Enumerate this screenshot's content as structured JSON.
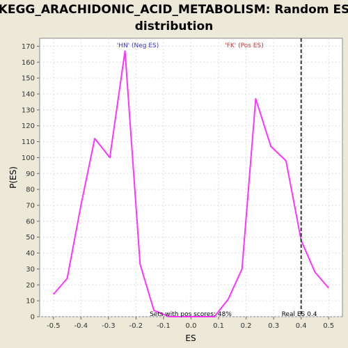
{
  "chart_data": {
    "type": "line",
    "title_line1": "KEGG_ARACHIDONIC_ACID_METABOLISM: Random ES",
    "title_line2": "distribution",
    "xlabel": "ES",
    "ylabel": "P(ES)",
    "xlim": [
      -0.55,
      0.55
    ],
    "ylim": [
      0,
      175
    ],
    "xticks": [
      -0.5,
      -0.4,
      -0.3,
      -0.2,
      -0.1,
      0.0,
      0.1,
      0.2,
      0.3,
      0.4,
      0.5
    ],
    "xtick_labels": [
      "-0.5",
      "-0.4",
      "-0.3",
      "-0.2",
      "-0.1",
      "0.0",
      "0.1",
      "0.2",
      "0.3",
      "0.4",
      "0.5"
    ],
    "yticks": [
      0,
      10,
      20,
      30,
      40,
      50,
      60,
      70,
      80,
      90,
      100,
      110,
      120,
      130,
      140,
      150,
      160,
      170
    ],
    "grid": true,
    "series": [
      {
        "color": "#ff33ff",
        "x": [
          -0.5,
          -0.45,
          -0.4,
          -0.35,
          -0.295,
          -0.24,
          -0.185,
          -0.135,
          -0.08,
          0.085,
          0.135,
          0.185,
          0.235,
          0.29,
          0.345,
          0.4,
          0.45,
          0.5
        ],
        "y": [
          14,
          24,
          70,
          112,
          100,
          167,
          33,
          4,
          0,
          0,
          11,
          30,
          137,
          107,
          98,
          48,
          28,
          18
        ]
      }
    ],
    "vline": {
      "x": 0.4,
      "style": "dashed",
      "color": "#333333"
    },
    "annotations": {
      "neg_label": "'HN' (Neg ES)",
      "pos_label": "'FK' (Pos ES)",
      "sets_label": "Sets with pos scores: 48%",
      "real_es_label": "Real ES 0.4"
    },
    "colors": {
      "background": "#ece9d8",
      "plot_bg": "#ffffff",
      "neg": "#3333cc",
      "pos": "#cc3333"
    }
  }
}
